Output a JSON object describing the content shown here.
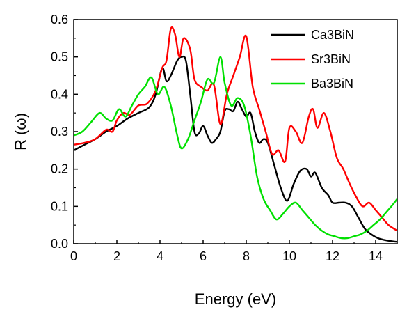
{
  "chart_data": {
    "type": "line",
    "title": "",
    "xlabel": "Energy (eV)",
    "ylabel": "R (ω)",
    "xlim": [
      0,
      15
    ],
    "ylim": [
      0.0,
      0.6
    ],
    "xticks": [
      0,
      2,
      4,
      6,
      8,
      10,
      12,
      14
    ],
    "yticks": [
      0.0,
      0.1,
      0.2,
      0.3,
      0.4,
      0.5,
      0.6
    ],
    "xtick_labels": [
      "0",
      "2",
      "4",
      "6",
      "8",
      "10",
      "12",
      "14"
    ],
    "ytick_labels": [
      "0.0",
      "0.1",
      "0.2",
      "0.3",
      "0.4",
      "0.5",
      "0.6"
    ],
    "grid": false,
    "legend_position": "top-right",
    "series": [
      {
        "name": "Ca3BiN",
        "color": "#000000",
        "x": [
          0,
          0.5,
          1.0,
          1.5,
          2.0,
          2.5,
          3.0,
          3.5,
          3.8,
          4.1,
          4.3,
          4.5,
          4.8,
          5.0,
          5.2,
          5.4,
          5.6,
          5.8,
          6.0,
          6.2,
          6.4,
          6.6,
          6.8,
          7.0,
          7.2,
          7.4,
          7.6,
          7.8,
          8.0,
          8.2,
          8.4,
          8.6,
          8.8,
          9.0,
          9.3,
          9.6,
          9.9,
          10.2,
          10.5,
          10.8,
          11.0,
          11.2,
          11.5,
          11.8,
          12.0,
          12.3,
          12.6,
          12.9,
          13.2,
          13.5,
          13.8,
          14.1,
          14.4,
          14.7,
          15.0
        ],
        "values": [
          0.25,
          0.265,
          0.28,
          0.3,
          0.315,
          0.335,
          0.35,
          0.365,
          0.4,
          0.47,
          0.435,
          0.45,
          0.49,
          0.5,
          0.49,
          0.4,
          0.3,
          0.295,
          0.315,
          0.29,
          0.27,
          0.28,
          0.3,
          0.355,
          0.36,
          0.355,
          0.38,
          0.36,
          0.34,
          0.35,
          0.3,
          0.27,
          0.28,
          0.27,
          0.21,
          0.15,
          0.115,
          0.16,
          0.195,
          0.2,
          0.18,
          0.19,
          0.15,
          0.13,
          0.11,
          0.11,
          0.11,
          0.1,
          0.07,
          0.04,
          0.025,
          0.015,
          0.01,
          0.007,
          0.005
        ]
      },
      {
        "name": "Sr3BiN",
        "color": "#ff0000",
        "x": [
          0,
          0.5,
          1.0,
          1.5,
          1.8,
          2.0,
          2.3,
          2.6,
          3.0,
          3.4,
          3.8,
          4.1,
          4.3,
          4.5,
          4.7,
          4.9,
          5.1,
          5.4,
          5.6,
          5.9,
          6.2,
          6.5,
          6.8,
          7.1,
          7.4,
          7.7,
          8.0,
          8.3,
          8.6,
          8.9,
          9.2,
          9.5,
          9.8,
          10.0,
          10.3,
          10.6,
          10.9,
          11.1,
          11.3,
          11.6,
          11.9,
          12.2,
          12.5,
          12.8,
          13.1,
          13.4,
          13.7,
          14.0,
          14.3,
          14.6,
          15.0
        ],
        "values": [
          0.265,
          0.27,
          0.28,
          0.305,
          0.3,
          0.33,
          0.35,
          0.345,
          0.37,
          0.375,
          0.41,
          0.47,
          0.49,
          0.575,
          0.56,
          0.5,
          0.55,
          0.52,
          0.44,
          0.42,
          0.41,
          0.425,
          0.32,
          0.4,
          0.45,
          0.5,
          0.555,
          0.42,
          0.36,
          0.3,
          0.24,
          0.25,
          0.22,
          0.31,
          0.3,
          0.27,
          0.34,
          0.36,
          0.31,
          0.35,
          0.3,
          0.23,
          0.2,
          0.16,
          0.125,
          0.1,
          0.11,
          0.09,
          0.07,
          0.05,
          0.035
        ]
      },
      {
        "name": "Ba3BiN",
        "color": "#00e000",
        "x": [
          0,
          0.4,
          0.8,
          1.2,
          1.5,
          1.8,
          2.1,
          2.4,
          2.7,
          3.0,
          3.3,
          3.6,
          3.9,
          4.2,
          4.5,
          4.8,
          5.0,
          5.3,
          5.6,
          5.9,
          6.2,
          6.5,
          6.8,
          7.0,
          7.3,
          7.6,
          7.9,
          8.2,
          8.5,
          8.8,
          9.1,
          9.4,
          9.7,
          10.0,
          10.3,
          10.6,
          10.9,
          11.2,
          11.5,
          11.8,
          12.1,
          12.4,
          12.7,
          13.0,
          13.3,
          13.6,
          13.9,
          14.2,
          14.5,
          14.8,
          15.0
        ],
        "values": [
          0.29,
          0.3,
          0.325,
          0.35,
          0.335,
          0.33,
          0.36,
          0.34,
          0.37,
          0.4,
          0.42,
          0.445,
          0.4,
          0.42,
          0.37,
          0.29,
          0.255,
          0.28,
          0.33,
          0.38,
          0.44,
          0.43,
          0.5,
          0.43,
          0.37,
          0.39,
          0.37,
          0.29,
          0.18,
          0.12,
          0.09,
          0.065,
          0.08,
          0.1,
          0.11,
          0.09,
          0.07,
          0.05,
          0.035,
          0.025,
          0.02,
          0.015,
          0.015,
          0.02,
          0.025,
          0.035,
          0.05,
          0.065,
          0.085,
          0.105,
          0.12
        ]
      }
    ]
  },
  "legend": {
    "items": [
      {
        "label": "Ca3BiN",
        "color": "#000000"
      },
      {
        "label": "Sr3BiN",
        "color": "#ff0000"
      },
      {
        "label": "Ba3BiN",
        "color": "#00e000"
      }
    ]
  }
}
